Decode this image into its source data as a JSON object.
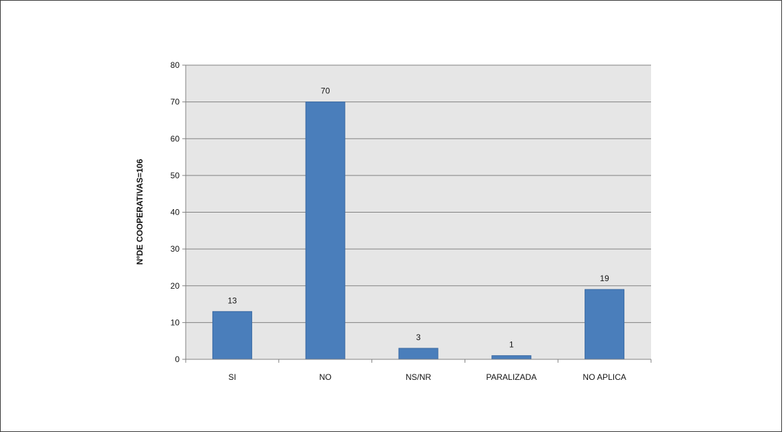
{
  "chart_data": {
    "type": "bar",
    "title": "",
    "xlabel": "",
    "ylabel": "NºDE COOPERATIVAS=106",
    "categories": [
      "SI",
      "NO",
      "NS/NR",
      "PARALIZADA",
      "NO APLICA"
    ],
    "values": [
      13,
      70,
      3,
      1,
      19
    ],
    "data_labels": [
      "13",
      "70",
      "3",
      "1",
      "19"
    ],
    "yticks": [
      "0",
      "10",
      "20",
      "30",
      "40",
      "50",
      "60",
      "70",
      "80"
    ],
    "ylim": [
      0,
      80
    ],
    "grid": true,
    "legend": "none",
    "colors": {
      "bar": "#4a7ebb",
      "bar_edge": "#3b6aa3",
      "plot_bg": "#e6e6e6",
      "grid": "#808080"
    }
  }
}
